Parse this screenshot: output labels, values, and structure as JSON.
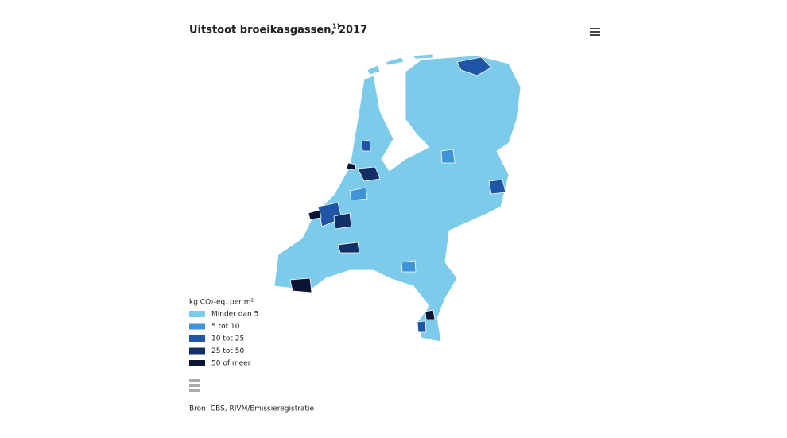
{
  "header": {
    "title": "Uitstoot broeikasgassen, 2017",
    "title_note": "1)"
  },
  "legend": {
    "title": "kg CO₂-eq. per m²",
    "items": [
      {
        "label": "Minder dan 5",
        "color": "#7ccbea"
      },
      {
        "label": "5 tot 10",
        "color": "#3d94d6"
      },
      {
        "label": "10 tot 25",
        "color": "#1e55a6"
      },
      {
        "label": "25 tot 50",
        "color": "#122f66"
      },
      {
        "label": "50 of meer",
        "color": "#0a1535"
      }
    ]
  },
  "footer": {
    "source": "Bron: CBS, RIVM/Emissieregistratie"
  }
}
